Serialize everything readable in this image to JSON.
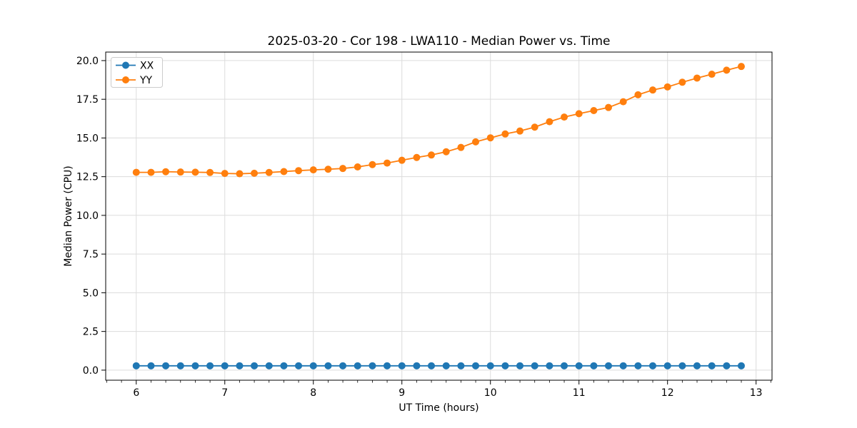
{
  "chart_data": {
    "type": "line",
    "title": "2025-03-20 - Cor 198 - LWA110 - Median Power vs. Time",
    "xlabel": "UT Time (hours)",
    "ylabel": "Median Power (CPU)",
    "xlim": [
      5.655,
      13.18
    ],
    "ylim": [
      -0.65,
      20.55
    ],
    "xticks": [
      6,
      7,
      8,
      9,
      10,
      11,
      12,
      13
    ],
    "xtick_labels": [
      "6",
      "7",
      "8",
      "9",
      "10",
      "11",
      "12",
      "13"
    ],
    "x_minor_tick_step": 0.166667,
    "yticks": [
      0,
      2.5,
      5,
      7.5,
      10,
      12.5,
      15,
      17.5,
      20
    ],
    "ytick_labels": [
      "0.0",
      "2.5",
      "5.0",
      "7.5",
      "10.0",
      "12.5",
      "15.0",
      "17.5",
      "20.0"
    ],
    "grid": true,
    "grid_color": "#dcdcdc",
    "legend": {
      "location": "upper-left"
    },
    "x": [
      6.0,
      6.167,
      6.333,
      6.5,
      6.667,
      6.833,
      7.0,
      7.167,
      7.333,
      7.5,
      7.667,
      7.833,
      8.0,
      8.167,
      8.333,
      8.5,
      8.667,
      8.833,
      9.0,
      9.167,
      9.333,
      9.5,
      9.667,
      9.833,
      10.0,
      10.167,
      10.333,
      10.5,
      10.667,
      10.833,
      11.0,
      11.167,
      11.333,
      11.5,
      11.667,
      11.833,
      12.0,
      12.167,
      12.333,
      12.5,
      12.667,
      12.833
    ],
    "series": [
      {
        "name": "XX",
        "color": "#1f77b4",
        "marker": "circle",
        "values": [
          0.28,
          0.28,
          0.28,
          0.28,
          0.28,
          0.28,
          0.28,
          0.28,
          0.28,
          0.28,
          0.28,
          0.28,
          0.28,
          0.28,
          0.28,
          0.28,
          0.28,
          0.28,
          0.28,
          0.28,
          0.28,
          0.28,
          0.28,
          0.28,
          0.28,
          0.28,
          0.28,
          0.28,
          0.28,
          0.28,
          0.28,
          0.28,
          0.28,
          0.28,
          0.28,
          0.28,
          0.28,
          0.28,
          0.28,
          0.28,
          0.28,
          0.28
        ]
      },
      {
        "name": "YY",
        "color": "#ff7f0e",
        "marker": "circle",
        "values": [
          12.78,
          12.78,
          12.82,
          12.8,
          12.79,
          12.77,
          12.71,
          12.69,
          12.72,
          12.77,
          12.83,
          12.89,
          12.94,
          12.98,
          13.03,
          13.13,
          13.28,
          13.38,
          13.56,
          13.74,
          13.9,
          14.11,
          14.39,
          14.75,
          15.01,
          15.26,
          15.45,
          15.7,
          16.05,
          16.35,
          16.57,
          16.77,
          16.97,
          17.34,
          17.79,
          18.1,
          18.3,
          18.6,
          18.87,
          19.12,
          19.38,
          19.62
        ]
      }
    ]
  }
}
